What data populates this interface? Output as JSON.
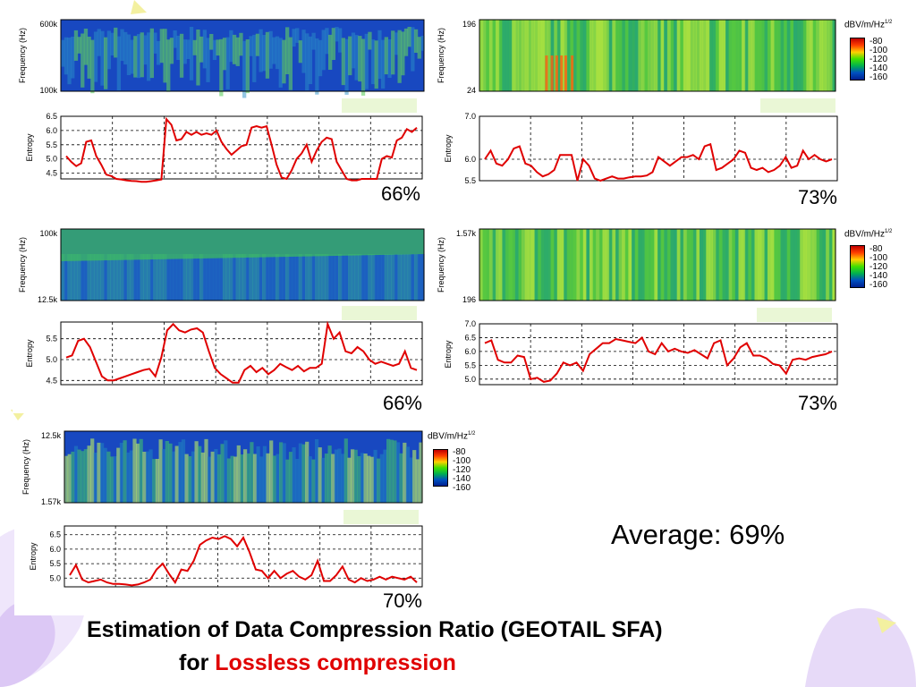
{
  "slide": {
    "title_line1": "Estimation of Data Compression Ratio (GEOTAIL SFA)",
    "title_line2_prefix": "for ",
    "title_line2_highlight": "Lossless compression",
    "average": "Average: 69%",
    "colors": {
      "entropy_line": "#e00000",
      "highlight_text": "#e00000"
    }
  },
  "colorbar": {
    "title": "dBV/m/Hz",
    "title_sup": "1/2",
    "ticks": [
      "-80",
      "-100",
      "-120",
      "-140",
      "-160"
    ]
  },
  "panels": [
    {
      "id": "p1",
      "ratio": "66%",
      "freq_top": "600k",
      "freq_bottom": "100k",
      "freq_label": "Frequency (Hz)",
      "entropy_label": "Entropy",
      "entropy_ticks": [
        "6.5",
        "6.0",
        "5.5",
        "5.0",
        "4.5"
      ]
    },
    {
      "id": "p2",
      "ratio": "73%",
      "freq_top": "196",
      "freq_bottom": "24",
      "freq_label": "Frequency (Hz)",
      "entropy_label": "Entropy",
      "entropy_ticks": [
        "7.0",
        "6.0",
        "5.5"
      ]
    },
    {
      "id": "p3",
      "ratio": "66%",
      "freq_top": "100k",
      "freq_bottom": "12.5k",
      "freq_label": "Frequency (Hz)",
      "entropy_label": "Entropy",
      "entropy_ticks": [
        "5.5",
        "5.0",
        "4.5"
      ]
    },
    {
      "id": "p4",
      "ratio": "73%",
      "freq_top": "1.57k",
      "freq_bottom": "196",
      "freq_label": "Frequency (Hz)",
      "entropy_label": "Entropy",
      "entropy_ticks": [
        "7.0",
        "6.5",
        "6.0",
        "5.5",
        "5.0"
      ]
    },
    {
      "id": "p5",
      "ratio": "70%",
      "freq_top": "12.5k",
      "freq_bottom": "1.57k",
      "freq_label": "Frequency (Hz)",
      "entropy_label": "Entropy",
      "entropy_ticks": [
        "6.5",
        "6.0",
        "5.5",
        "5.0"
      ]
    }
  ],
  "chart_data": [
    {
      "type": "line",
      "title": "",
      "xlabel": "",
      "ylabel": "Entropy",
      "ylim": [
        4.3,
        6.5
      ],
      "grid": true,
      "series": [
        {
          "values": [
            5.1,
            4.9,
            4.75,
            4.85,
            5.6,
            5.65,
            5.1,
            4.8,
            4.45,
            4.4,
            4.3,
            4.28,
            4.25,
            4.23,
            4.22,
            4.2,
            4.2,
            4.22,
            4.25,
            4.28,
            6.4,
            6.2,
            5.65,
            5.7,
            5.95,
            5.85,
            5.95,
            5.85,
            5.9,
            5.85,
            6.0,
            5.6,
            5.35,
            5.15,
            5.3,
            5.45,
            5.5,
            6.1,
            6.15,
            6.1,
            6.15,
            5.5,
            4.8,
            4.35,
            4.3,
            4.6,
            5.0,
            5.2,
            5.5,
            4.9,
            5.3,
            5.6,
            5.75,
            5.7,
            4.9,
            4.6,
            4.3,
            4.25,
            4.25,
            4.3,
            4.3,
            4.3,
            4.3,
            5.0,
            5.1,
            5.05,
            5.65,
            5.75,
            6.05,
            5.95,
            6.1
          ]
        }
      ]
    },
    {
      "type": "line",
      "title": "",
      "xlabel": "",
      "ylabel": "Entropy",
      "ylim": [
        5.5,
        7.0
      ],
      "grid": true,
      "series": [
        {
          "values": [
            6.0,
            6.2,
            5.9,
            5.85,
            6.0,
            6.25,
            6.3,
            5.9,
            5.85,
            5.7,
            5.6,
            5.65,
            5.75,
            6.1,
            6.1,
            6.1,
            5.5,
            6.0,
            5.85,
            5.55,
            5.5,
            5.55,
            5.6,
            5.55,
            5.55,
            5.58,
            5.6,
            5.6,
            5.62,
            5.7,
            6.05,
            5.95,
            5.85,
            5.95,
            6.05,
            6.05,
            6.1,
            6.0,
            6.3,
            6.35,
            5.75,
            5.8,
            5.9,
            6.0,
            6.2,
            6.15,
            5.8,
            5.75,
            5.8,
            5.7,
            5.75,
            5.85,
            6.05,
            5.8,
            5.85,
            6.2,
            6.0,
            6.1,
            6.0,
            5.95,
            6.0
          ]
        }
      ]
    },
    {
      "type": "line",
      "title": "",
      "xlabel": "",
      "ylabel": "Entropy",
      "ylim": [
        4.4,
        5.9
      ],
      "grid": true,
      "series": [
        {
          "values": [
            5.05,
            5.1,
            5.45,
            5.5,
            5.3,
            4.95,
            4.6,
            4.5,
            4.5,
            4.55,
            4.6,
            4.65,
            4.7,
            4.75,
            4.78,
            4.6,
            5.05,
            5.7,
            5.85,
            5.7,
            5.65,
            5.72,
            5.75,
            5.65,
            5.2,
            4.8,
            4.65,
            4.55,
            4.45,
            4.45,
            4.75,
            4.85,
            4.7,
            4.8,
            4.65,
            4.75,
            4.9,
            4.82,
            4.75,
            4.85,
            4.72,
            4.8,
            4.8,
            4.9,
            5.85,
            5.5,
            5.65,
            5.2,
            5.15,
            5.3,
            5.2,
            5.0,
            4.9,
            4.95,
            4.9,
            4.85,
            4.9,
            5.2,
            4.8,
            4.75
          ]
        }
      ]
    },
    {
      "type": "line",
      "title": "",
      "xlabel": "",
      "ylabel": "Entropy",
      "ylim": [
        4.8,
        7.0
      ],
      "grid": true,
      "series": [
        {
          "values": [
            6.3,
            6.4,
            5.7,
            5.6,
            5.6,
            5.85,
            5.8,
            5.0,
            5.05,
            4.9,
            4.95,
            5.2,
            5.6,
            5.5,
            5.6,
            5.3,
            5.9,
            6.1,
            6.3,
            6.3,
            6.45,
            6.4,
            6.35,
            6.3,
            6.5,
            6.0,
            5.9,
            6.3,
            6.0,
            6.1,
            6.0,
            5.95,
            6.05,
            5.9,
            5.75,
            6.3,
            6.4,
            5.5,
            5.75,
            6.15,
            6.3,
            5.85,
            5.85,
            5.75,
            5.55,
            5.5,
            5.2,
            5.7,
            5.75,
            5.7,
            5.8,
            5.85,
            5.9,
            6.0
          ]
        }
      ]
    },
    {
      "type": "line",
      "title": "",
      "xlabel": "",
      "ylabel": "Entropy",
      "ylim": [
        4.7,
        6.8
      ],
      "grid": true,
      "series": [
        {
          "values": [
            5.1,
            5.45,
            4.95,
            4.85,
            4.9,
            4.95,
            4.85,
            4.8,
            4.8,
            4.78,
            4.75,
            4.78,
            4.85,
            4.95,
            5.3,
            5.5,
            5.15,
            4.85,
            5.3,
            5.25,
            5.6,
            6.15,
            6.3,
            6.4,
            6.35,
            6.45,
            6.35,
            6.1,
            6.4,
            5.9,
            5.3,
            5.25,
            5.0,
            5.25,
            5.0,
            5.15,
            5.25,
            5.05,
            4.95,
            5.1,
            5.6,
            4.9,
            4.9,
            5.1,
            5.4,
            4.95,
            4.85,
            5.0,
            4.9,
            4.95,
            5.05,
            4.95,
            5.05,
            5.0,
            4.95,
            5.05,
            4.85
          ]
        }
      ]
    }
  ]
}
